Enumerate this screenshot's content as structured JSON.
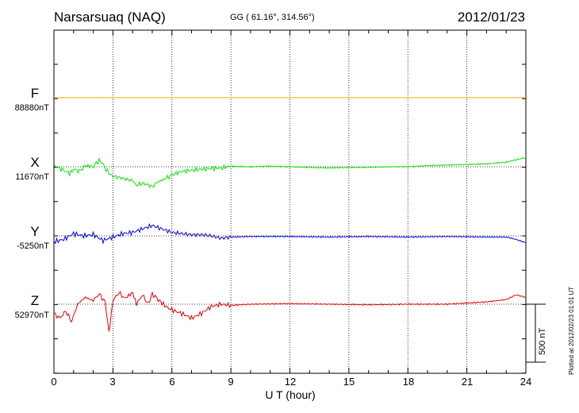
{
  "header": {
    "station": "Narsarsuaq (NAQ)",
    "coords": "GG ( 61.16°, 314.56°)",
    "date": "2012/01/23"
  },
  "xaxis": {
    "label": "U T (hour)",
    "ticks": [
      "0",
      "3",
      "6",
      "9",
      "12",
      "15",
      "18",
      "21",
      "24"
    ]
  },
  "scale_label": "500 nT",
  "footer_note": "Plotted at 2012/02/23 01:01 UT",
  "components": [
    {
      "letter": "F",
      "base": "88880nT",
      "color": "#f0a800"
    },
    {
      "letter": "X",
      "base": "11670nT",
      "color": "#00e600"
    },
    {
      "letter": "Y",
      "base": "-5250nT",
      "color": "#0000e0"
    },
    {
      "letter": "Z",
      "base": "52970nT",
      "color": "#e60000"
    }
  ],
  "chart_data": {
    "type": "line",
    "title": "Narsarsuaq (NAQ)",
    "xlabel": "U T (hour)",
    "xlim": [
      0,
      24
    ],
    "x_ticks": [
      0,
      3,
      6,
      9,
      12,
      15,
      18,
      21,
      24
    ],
    "scale_bar_nT": 500,
    "units": "nT (deviation from base value)",
    "series": [
      {
        "name": "F",
        "base": "88880nT",
        "color": "#f0a800",
        "x": [
          0,
          24
        ],
        "y": [
          0,
          0
        ]
      },
      {
        "name": "X",
        "base": "11670nT",
        "color": "#00e600",
        "x": [
          0,
          0.5,
          0.8,
          1.0,
          1.3,
          1.6,
          2.0,
          2.3,
          2.5,
          2.8,
          3.0,
          3.5,
          4.0,
          4.2,
          4.5,
          5.0,
          5.3,
          5.7,
          6.0,
          6.5,
          7.0,
          7.5,
          8.0,
          8.5,
          9.0,
          10,
          11,
          12,
          13,
          14,
          15,
          16,
          17,
          18,
          19,
          20,
          21,
          22,
          23,
          23.5,
          24
        ],
        "y": [
          10,
          -30,
          -60,
          -20,
          -40,
          10,
          0,
          60,
          20,
          -60,
          -80,
          -100,
          -120,
          -160,
          -140,
          -170,
          -130,
          -100,
          -70,
          -40,
          -30,
          -20,
          -15,
          -10,
          5,
          0,
          5,
          0,
          -5,
          -10,
          -5,
          -5,
          0,
          0,
          10,
          15,
          20,
          25,
          40,
          60,
          80
        ]
      },
      {
        "name": "Y",
        "base": "-5250nT",
        "color": "#0000e0",
        "x": [
          0,
          0.5,
          1.0,
          1.5,
          2.0,
          2.5,
          3.0,
          3.5,
          4.0,
          4.5,
          5.0,
          5.5,
          6.0,
          6.5,
          7.0,
          7.5,
          8.0,
          8.5,
          9.0,
          10,
          12,
          14,
          16,
          18,
          20,
          22,
          23,
          23.5,
          24
        ],
        "y": [
          -50,
          -30,
          20,
          0,
          10,
          -40,
          -10,
          20,
          30,
          60,
          90,
          60,
          30,
          20,
          10,
          10,
          0,
          -20,
          -10,
          -5,
          -5,
          -10,
          -5,
          -10,
          -5,
          -10,
          -10,
          -30,
          -60
        ]
      },
      {
        "name": "Z",
        "base": "52970nT",
        "color": "#e60000",
        "x": [
          0,
          0.3,
          0.6,
          0.9,
          1.2,
          1.6,
          2.0,
          2.3,
          2.6,
          2.8,
          3.0,
          3.3,
          3.6,
          4.0,
          4.2,
          4.5,
          4.8,
          5.0,
          5.3,
          5.7,
          6.0,
          6.5,
          7.0,
          7.5,
          8.0,
          8.5,
          9.0,
          10,
          12,
          14,
          16,
          18,
          20,
          21,
          22,
          23,
          23.5,
          24
        ],
        "y": [
          -80,
          -120,
          -60,
          -150,
          0,
          60,
          30,
          90,
          20,
          -240,
          30,
          100,
          50,
          100,
          0,
          80,
          0,
          90,
          40,
          -20,
          -50,
          -80,
          -120,
          -80,
          -20,
          0,
          -10,
          0,
          5,
          0,
          -5,
          0,
          0,
          10,
          20,
          40,
          80,
          60
        ]
      }
    ]
  }
}
